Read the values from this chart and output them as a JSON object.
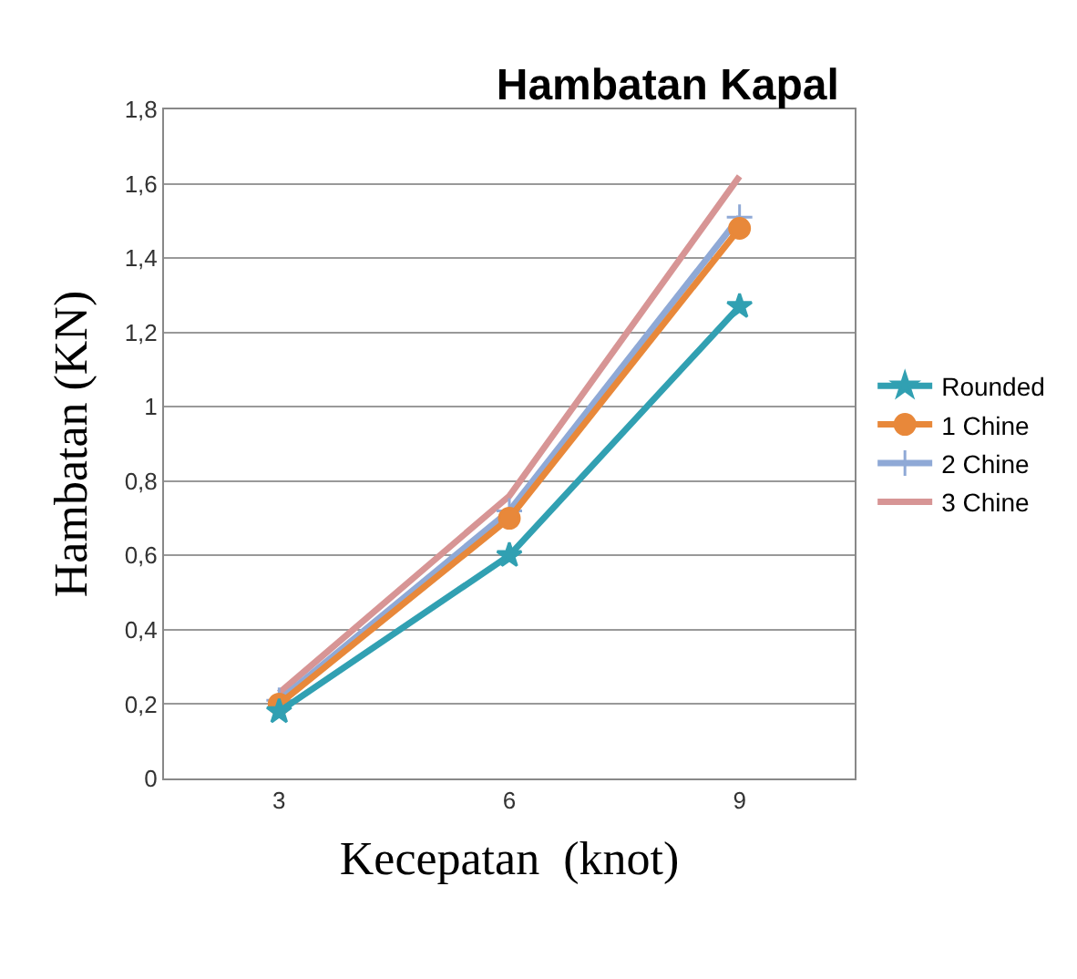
{
  "chart_data": {
    "type": "line",
    "title": "Hambatan Kapal",
    "xlabel": "Kecepatan  (knot)",
    "ylabel": "Hambatan (KN)",
    "categories": [
      "3",
      "6",
      "9"
    ],
    "series": [
      {
        "name": "Rounded",
        "color": "#31a0b2",
        "marker": "star",
        "values": [
          0.18,
          0.6,
          1.27
        ]
      },
      {
        "name": "1 Chine",
        "color": "#e8883a",
        "marker": "circle",
        "values": [
          0.2,
          0.7,
          1.48
        ]
      },
      {
        "name": "2 Chine",
        "color": "#8fa9d6",
        "marker": "cross",
        "values": [
          0.21,
          0.72,
          1.51
        ]
      },
      {
        "name": "3 Chine",
        "color": "#d79595",
        "marker": "none",
        "values": [
          0.23,
          0.76,
          1.62
        ]
      }
    ],
    "ylim": [
      0,
      1.8
    ],
    "yticks": [
      0,
      {
        "value": 0.2,
        "label": "0,2"
      },
      {
        "value": 0.4,
        "label": "0,4"
      },
      {
        "value": 0.6,
        "label": "0,6"
      },
      {
        "value": 0.8,
        "label": "0,8"
      },
      1,
      {
        "value": 1.2,
        "label": "1,2"
      },
      {
        "value": 1.4,
        "label": "1,4"
      },
      {
        "value": 1.6,
        "label": "1,6"
      },
      {
        "value": 1.8,
        "label": "1,8"
      }
    ],
    "grid": "y",
    "legend": "right"
  }
}
